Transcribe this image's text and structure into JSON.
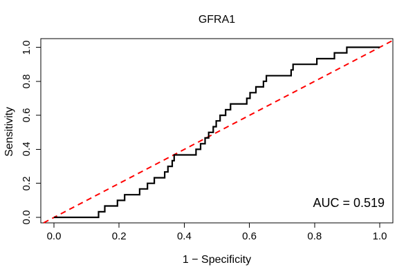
{
  "chart_data": {
    "type": "line",
    "subtype": "roc-curve",
    "title": "GFRA1",
    "xlabel": "1 − Specificity",
    "ylabel": "Sensitivity",
    "xlim": [
      0,
      1
    ],
    "ylim": [
      0,
      1
    ],
    "grid": false,
    "x_ticks": [
      "0.0",
      "0.2",
      "0.4",
      "0.6",
      "0.8",
      "1.0"
    ],
    "y_ticks": [
      "0.0",
      "0.2",
      "0.4",
      "0.6",
      "0.8",
      "1.0"
    ],
    "auc": 0.519,
    "auc_label": "AUC = 0.519",
    "colors": {
      "curve": "#000000",
      "reference": "#ff0000",
      "text": "#000000",
      "box": "#000000"
    },
    "series": [
      {
        "name": "ROC curve",
        "style": "solid-step",
        "color": "#000000",
        "points": [
          [
            0,
            0
          ],
          [
            0.137,
            0
          ],
          [
            0.137,
            0.033
          ],
          [
            0.156,
            0.033
          ],
          [
            0.156,
            0.067
          ],
          [
            0.195,
            0.067
          ],
          [
            0.195,
            0.1
          ],
          [
            0.217,
            0.1
          ],
          [
            0.217,
            0.133
          ],
          [
            0.263,
            0.133
          ],
          [
            0.263,
            0.167
          ],
          [
            0.287,
            0.167
          ],
          [
            0.287,
            0.2
          ],
          [
            0.308,
            0.2
          ],
          [
            0.308,
            0.233
          ],
          [
            0.34,
            0.233
          ],
          [
            0.34,
            0.267
          ],
          [
            0.35,
            0.267
          ],
          [
            0.35,
            0.3
          ],
          [
            0.363,
            0.3
          ],
          [
            0.363,
            0.333
          ],
          [
            0.369,
            0.333
          ],
          [
            0.369,
            0.367
          ],
          [
            0.436,
            0.367
          ],
          [
            0.436,
            0.4
          ],
          [
            0.45,
            0.4
          ],
          [
            0.45,
            0.433
          ],
          [
            0.464,
            0.433
          ],
          [
            0.464,
            0.467
          ],
          [
            0.475,
            0.467
          ],
          [
            0.475,
            0.5
          ],
          [
            0.489,
            0.5
          ],
          [
            0.489,
            0.533
          ],
          [
            0.498,
            0.533
          ],
          [
            0.498,
            0.567
          ],
          [
            0.51,
            0.567
          ],
          [
            0.51,
            0.6
          ],
          [
            0.527,
            0.6
          ],
          [
            0.527,
            0.633
          ],
          [
            0.542,
            0.633
          ],
          [
            0.542,
            0.667
          ],
          [
            0.592,
            0.667
          ],
          [
            0.592,
            0.7
          ],
          [
            0.602,
            0.7
          ],
          [
            0.602,
            0.733
          ],
          [
            0.62,
            0.733
          ],
          [
            0.62,
            0.767
          ],
          [
            0.643,
            0.767
          ],
          [
            0.643,
            0.8
          ],
          [
            0.652,
            0.8
          ],
          [
            0.652,
            0.833
          ],
          [
            0.728,
            0.833
          ],
          [
            0.728,
            0.867
          ],
          [
            0.734,
            0.867
          ],
          [
            0.734,
            0.9
          ],
          [
            0.807,
            0.9
          ],
          [
            0.807,
            0.933
          ],
          [
            0.861,
            0.933
          ],
          [
            0.861,
            0.967
          ],
          [
            0.899,
            0.967
          ],
          [
            0.899,
            1
          ],
          [
            1,
            1
          ]
        ]
      },
      {
        "name": "Chance diagonal",
        "style": "dashed",
        "color": "#ff0000",
        "points": [
          [
            0,
            0
          ],
          [
            1,
            1
          ]
        ]
      }
    ]
  }
}
